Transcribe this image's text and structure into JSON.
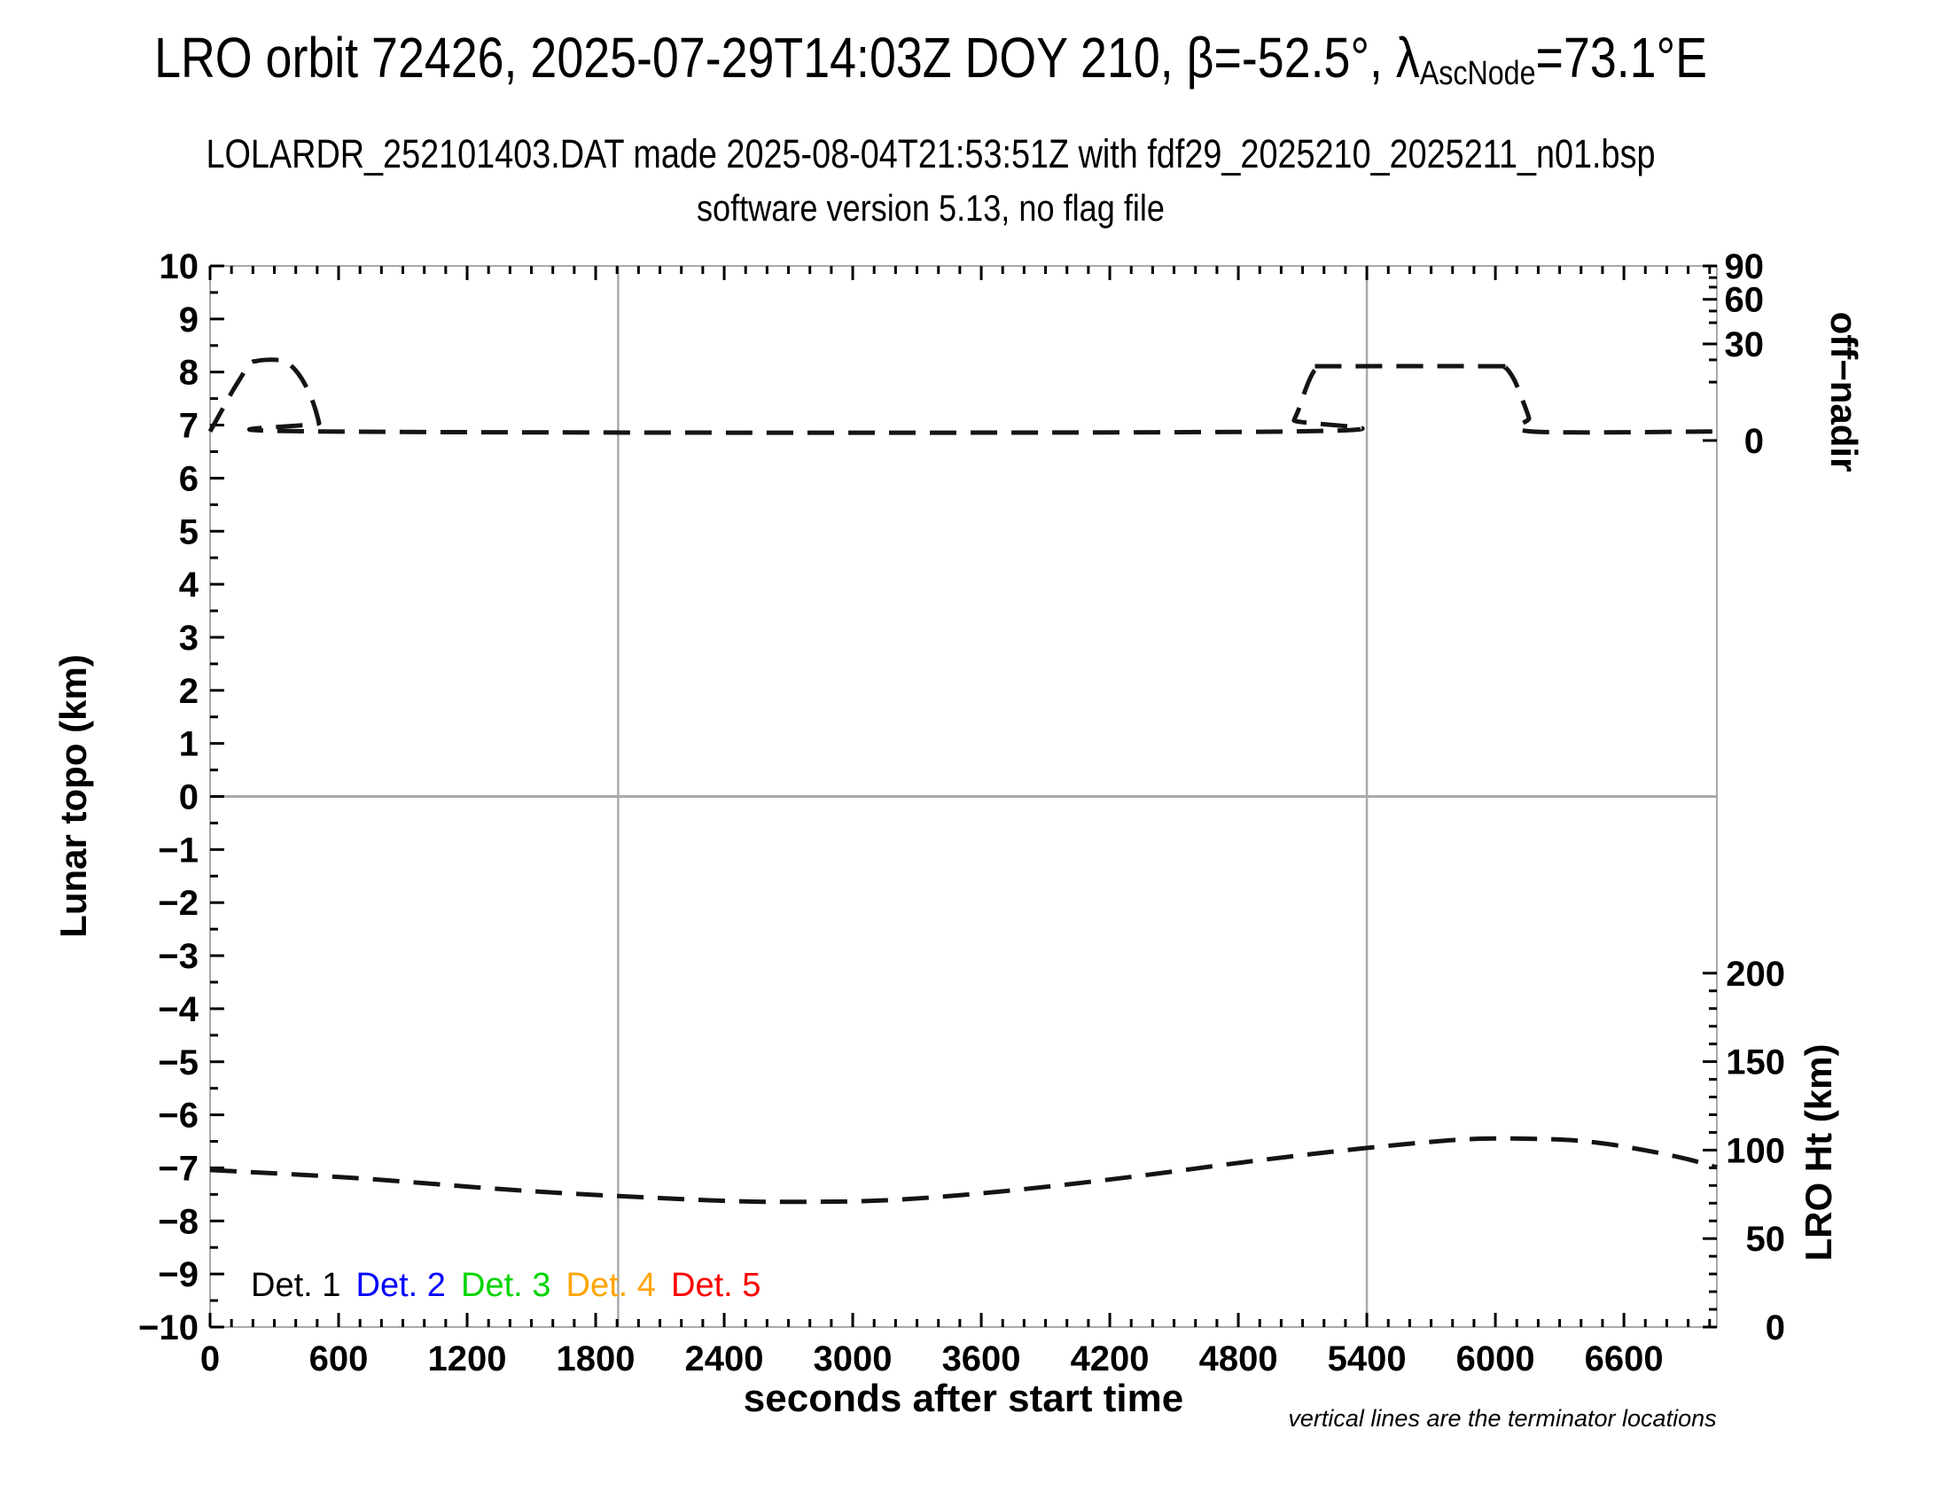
{
  "header": {
    "title_prefix": "LRO orbit 72426, 2025-07-29T14:03Z DOY 210, β=-52.5°, λ",
    "title_subscript": "AscNode",
    "title_suffix": "=73.1°E",
    "subtitle": "LOLARDR_252101403.DAT made 2025-08-04T21:53:51Z with fdf29_2025210_2025211_n01.bsp",
    "line3": "software version 5.13, no flag file"
  },
  "footnote": "vertical lines are the terminator locations",
  "colors": {
    "grid": "#aaaaaa",
    "frame": "#aaaaaa",
    "tick": "#000000",
    "curve": "#141414",
    "text": "#000000"
  },
  "chart_data": {
    "type": "line",
    "title": "LRO orbit 72426, 2025-07-29T14:03Z DOY 210, β=-52.5°, λAscNode=73.1°E",
    "grid": "zero line and terminator verticals only",
    "x_axis": {
      "label": "seconds after start time",
      "min": 0,
      "max": 7034,
      "major_step": 600,
      "minor_step": 100,
      "tick_labels": [
        0,
        600,
        1200,
        1800,
        2400,
        3000,
        3600,
        4200,
        4800,
        5400,
        6000,
        6600
      ]
    },
    "y_left_axis": {
      "label": "Lunar topo (km)",
      "min": -10,
      "max": 10,
      "major_step": 1,
      "minor_step": 0.5
    },
    "y_right_top_axis": {
      "label": "off-nadir",
      "scale": "nonlinear (degrees)",
      "major_ticks": [
        {
          "value": 90,
          "topo_pos": 10.0
        },
        {
          "value": 60,
          "topo_pos": 9.37
        },
        {
          "value": 30,
          "topo_pos": 8.53
        },
        {
          "value": 0,
          "topo_pos": 6.71
        }
      ],
      "minor_ticks_topo_pos": [
        9.78,
        9.6,
        9.15,
        8.93,
        8.23,
        7.81
      ]
    },
    "y_right_bottom_axis": {
      "label": "LRO Ht (km)",
      "min": 0,
      "max": 200,
      "major_step": 50,
      "minor_step": 10,
      "topo_pos_at_min": -10.0,
      "topo_pos_at_max": -3.33,
      "tick_labels": [
        200,
        150,
        100,
        50,
        0
      ]
    },
    "terminator_lines_s": [
      1905,
      5400
    ],
    "zero_line_topo": 0,
    "legend": [
      {
        "label": "Det. 1",
        "color": "#000000"
      },
      {
        "label": "Det. 2",
        "color": "#0000ff"
      },
      {
        "label": "Det. 3",
        "color": "#00d400"
      },
      {
        "label": "Det. 4",
        "color": "#ffa500"
      },
      {
        "label": "Det. 5",
        "color": "#ff0000"
      }
    ],
    "series": [
      {
        "name": "spacecraft off-nadir angle",
        "style": "dashed",
        "color": "#141414",
        "plotted_against": "left axis position (read on off-nadir scale)",
        "approx_readings_deg": {
          "baseline": 2.5,
          "first_plateau": 24,
          "second_plateau": 22
        },
        "points_s_topo": [
          [
            0,
            6.88
          ],
          [
            29,
            7.09
          ],
          [
            62,
            7.33
          ],
          [
            103,
            7.63
          ],
          [
            141,
            7.88
          ],
          [
            186,
            8.16
          ],
          [
            219,
            8.21
          ],
          [
            261,
            8.23
          ],
          [
            310,
            8.23
          ],
          [
            352,
            8.2
          ],
          [
            393,
            8.06
          ],
          [
            430,
            7.86
          ],
          [
            468,
            7.56
          ],
          [
            492,
            7.29
          ],
          [
            509,
            7.04
          ],
          [
            521,
            6.88
          ],
          [
            5040,
            6.88
          ],
          [
            5060,
            7.09
          ],
          [
            5085,
            7.33
          ],
          [
            5110,
            7.63
          ],
          [
            5135,
            7.88
          ],
          [
            5156,
            8.03
          ],
          [
            5185,
            8.1
          ],
          [
            5226,
            8.11
          ],
          [
            6012,
            8.11
          ],
          [
            6041,
            8.1
          ],
          [
            6066,
            8.0
          ],
          [
            6091,
            7.83
          ],
          [
            6115,
            7.59
          ],
          [
            6140,
            7.33
          ],
          [
            6157,
            7.13
          ],
          [
            6169,
            6.88
          ],
          [
            7034,
            6.88
          ]
        ]
      },
      {
        "name": "LRO height above surface",
        "style": "dashed",
        "color": "#141414",
        "plotted_against": "left axis position (read on LRO Ht scale)",
        "approx_readings_km": {
          "start": 90,
          "minimum": 72,
          "maximum": 108,
          "end": 91
        },
        "points_s_topo": [
          [
            0,
            -7.04
          ],
          [
            674,
            -7.19
          ],
          [
            1502,
            -7.44
          ],
          [
            2329,
            -7.61
          ],
          [
            2743,
            -7.64
          ],
          [
            3157,
            -7.61
          ],
          [
            3571,
            -7.49
          ],
          [
            3984,
            -7.32
          ],
          [
            4398,
            -7.12
          ],
          [
            4812,
            -6.9
          ],
          [
            5226,
            -6.7
          ],
          [
            5640,
            -6.53
          ],
          [
            5929,
            -6.45
          ],
          [
            6260,
            -6.46
          ],
          [
            6467,
            -6.52
          ],
          [
            6674,
            -6.65
          ],
          [
            6881,
            -6.82
          ],
          [
            7034,
            -6.99
          ]
        ]
      }
    ]
  }
}
